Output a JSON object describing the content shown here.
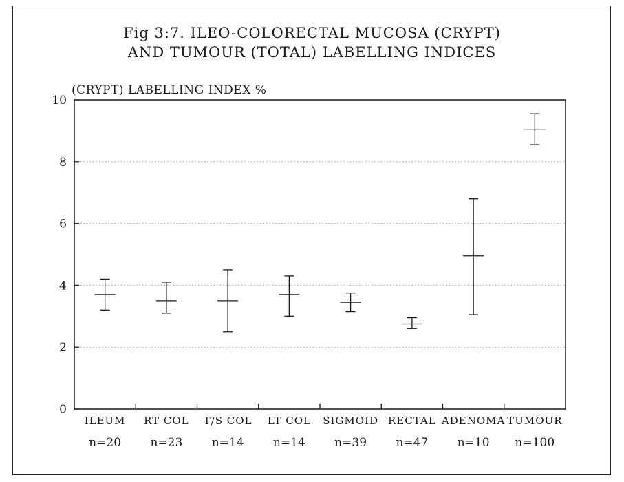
{
  "chart_data": {
    "type": "error-bar",
    "title_line1": "Fig 3:7. ILEO-COLORECTAL MUCOSA (CRYPT)",
    "title_line2": "AND TUMOUR (TOTAL) LABELLING INDICES",
    "ylabel": "(CRYPT) LABELLING INDEX %",
    "ylim": [
      0,
      10
    ],
    "yticks": [
      "0",
      "2",
      "4",
      "6",
      "8",
      "10"
    ],
    "grid": "horizontal dotted",
    "categories": [
      "ILEUM",
      "RT COL",
      "T/S COL",
      "LT COL",
      "SIGMOID",
      "RECTAL",
      "ADENOMA",
      "TUMOUR"
    ],
    "n_labels": [
      "n=20",
      "n=23",
      "n=14",
      "n=14",
      "n=39",
      "n=47",
      "n=10",
      "n=100"
    ],
    "series": [
      {
        "mean": [
          3.7,
          3.5,
          3.5,
          3.7,
          3.45,
          2.75,
          4.95,
          9.05
        ],
        "lower": [
          3.2,
          3.1,
          2.5,
          3.0,
          3.15,
          2.6,
          3.05,
          8.55
        ],
        "upper": [
          4.2,
          4.1,
          4.5,
          4.3,
          3.75,
          2.95,
          6.8,
          9.55
        ]
      }
    ]
  }
}
